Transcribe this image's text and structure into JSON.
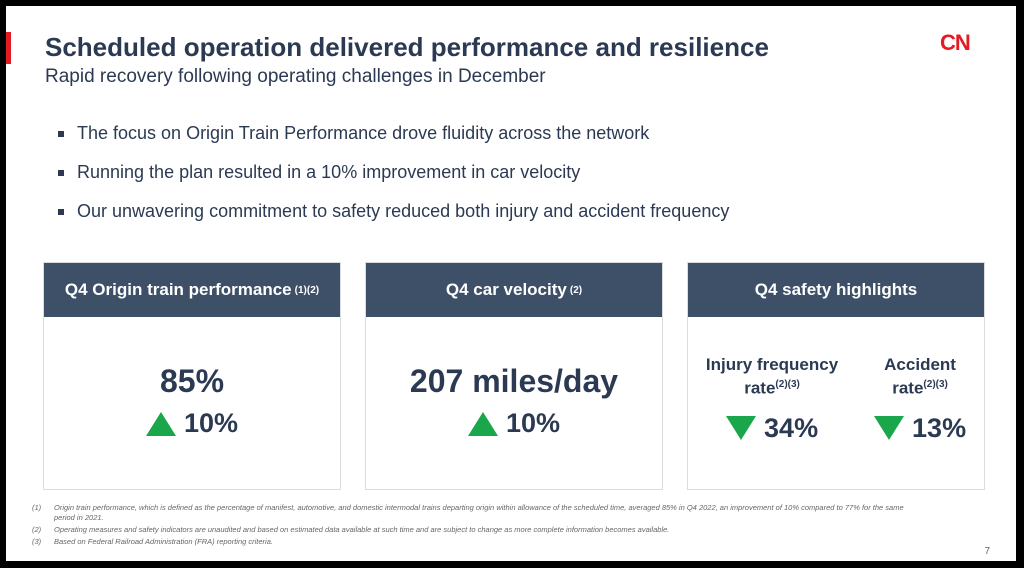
{
  "header": {
    "title": "Scheduled operation delivered performance and resilience",
    "subtitle": "Rapid recovery following operating challenges in December",
    "logo": "CN"
  },
  "bullets": [
    "The focus on Origin Train Performance drove fluidity across the network",
    "Running the plan resulted in a 10% improvement in car velocity",
    "Our unwavering commitment to safety reduced both injury and accident frequency"
  ],
  "cards": [
    {
      "title": "Q4 Origin train performance",
      "sup": "(1)(2)",
      "value": "85%",
      "change": "10%",
      "direction": "up"
    },
    {
      "title": "Q4 car velocity",
      "sup": "(2)",
      "value": "207 miles/day",
      "change": "10%",
      "direction": "up"
    },
    {
      "title": "Q4 safety highlights",
      "items": [
        {
          "label1": "Injury frequency",
          "label2": "rate",
          "sup": "(2)(3)",
          "change": "34%",
          "direction": "down"
        },
        {
          "label1": "Accident",
          "label2": "rate",
          "sup": "(2)(3)",
          "change": "13%",
          "direction": "down"
        }
      ]
    }
  ],
  "colors": {
    "accent": "#e31b23",
    "header": "#3d5068",
    "positive": "#1aa64a",
    "text": "#2b3a52"
  },
  "footnotes": [
    {
      "num": "(1)",
      "text": "Origin train performance, which is defined as the percentage of manifest, automotive, and domestic intermodal trains departing origin within allowance of the scheduled time, averaged 85% in Q4 2022, an improvement of 10% compared to 77% for the same period in 2021."
    },
    {
      "num": "(2)",
      "text": "Operating measures and safety indicators are unaudited and based on estimated data available at such time and are subject to change as more complete information becomes available."
    },
    {
      "num": "(3)",
      "text": "Based on Federal Railroad Administration (FRA) reporting criteria."
    }
  ],
  "page_number": "7"
}
